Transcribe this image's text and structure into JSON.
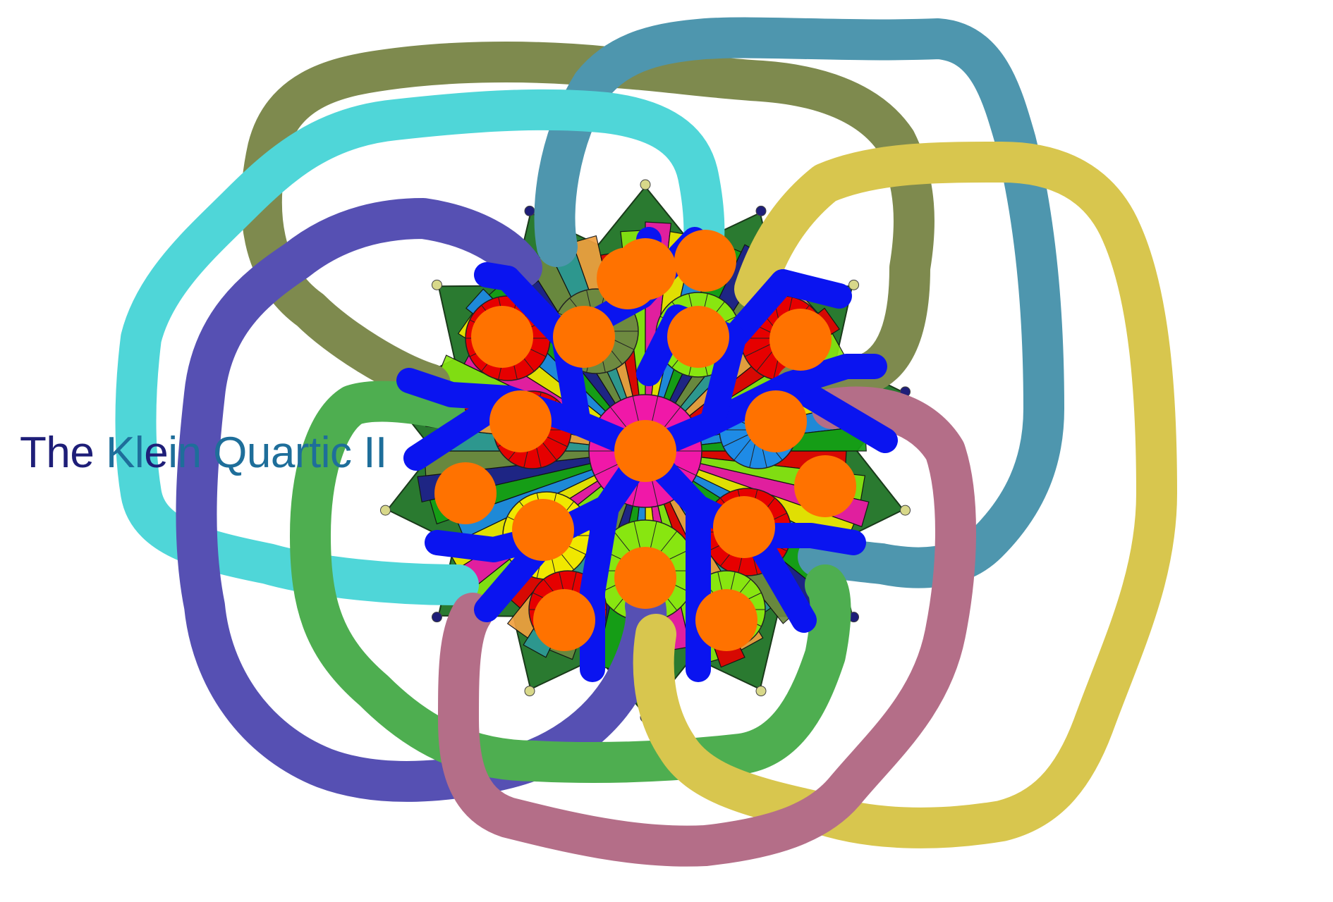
{
  "title": {
    "part1": "The ",
    "part2": "Kl",
    "part3": "e",
    "part4": "in Quartic II"
  },
  "loops": [
    {
      "id": "olive",
      "color": "#7e8a4e"
    },
    {
      "id": "steel-blue",
      "color": "#4e96ae"
    },
    {
      "id": "cyan",
      "color": "#4fd6d8"
    },
    {
      "id": "indigo",
      "color": "#5650b3"
    },
    {
      "id": "green",
      "color": "#4eae50"
    },
    {
      "id": "mustard",
      "color": "#d8c64e"
    },
    {
      "id": "mauve",
      "color": "#b46e88"
    }
  ],
  "graph": {
    "edge_color": "#0a14f0",
    "node_color": "#ff7200",
    "node_count": 17
  },
  "tiling": {
    "palette": [
      "#e60000",
      "#88e610",
      "#f018a8",
      "#f0e800",
      "#1e8be6",
      "#14a014",
      "#1e1e8c",
      "#6e8a40",
      "#2e9a96",
      "#f0a040"
    ],
    "vertex_light": "#d8d88a",
    "vertex_dark": "#1e1e78"
  }
}
